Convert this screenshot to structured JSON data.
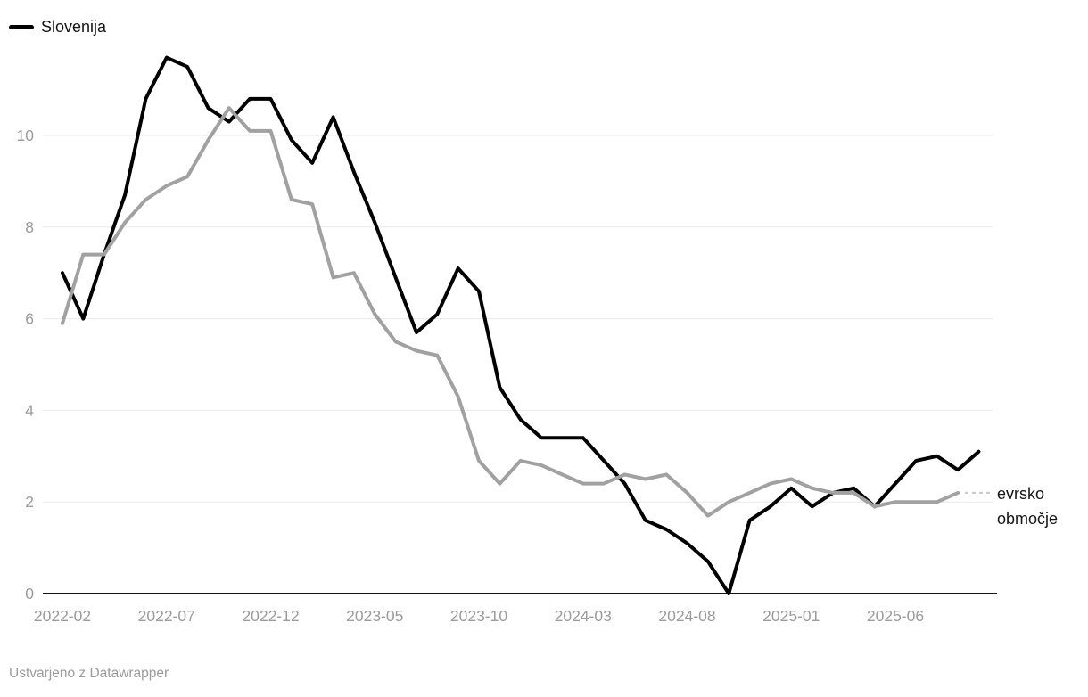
{
  "legend": {
    "items": [
      {
        "label": "Slovenija",
        "color": "#000000"
      }
    ]
  },
  "series_label": {
    "full": "evrsko območje",
    "line1": "evrsko",
    "line2": "območje"
  },
  "footer": {
    "text": "Ustvarjeno z Datawrapper"
  },
  "colors": {
    "slovenija_line": "#000000",
    "euro_line": "#a1a1a1",
    "dotted_connector": "#c8c8c8",
    "gridline": "#e9e9e9",
    "axis": "#141414",
    "tick_label": "#9b9b9b",
    "annotation_text": "#141414",
    "background": "#ffffff"
  },
  "chart_data": {
    "type": "line",
    "title": "",
    "xlabel": "",
    "ylabel": "",
    "grid": "horizontal",
    "legend_position": "top-left",
    "y_ticks": [
      0,
      2,
      4,
      6,
      8,
      10
    ],
    "ylim": [
      0,
      11.7
    ],
    "x_tick_labels": [
      "2022-02",
      "2022-07",
      "2022-12",
      "2023-05",
      "2023-10",
      "2024-03",
      "2024-08",
      "2025-01",
      "2025-06"
    ],
    "x": [
      "2022-02",
      "2022-03",
      "2022-04",
      "2022-05",
      "2022-06",
      "2022-07",
      "2022-08",
      "2022-09",
      "2022-10",
      "2022-11",
      "2022-12",
      "2023-01",
      "2023-02",
      "2023-03",
      "2023-04",
      "2023-05",
      "2023-06",
      "2023-07",
      "2023-08",
      "2023-09",
      "2023-10",
      "2023-11",
      "2023-12",
      "2024-01",
      "2024-02",
      "2024-03",
      "2024-04",
      "2024-05",
      "2024-06",
      "2024-07",
      "2024-08",
      "2024-09",
      "2024-10",
      "2024-11",
      "2024-12",
      "2025-01",
      "2025-02",
      "2025-03",
      "2025-04",
      "2025-05",
      "2025-06",
      "2025-07",
      "2025-08",
      "2025-09",
      "2025-10"
    ],
    "series": [
      {
        "name": "Slovenija",
        "color": "#000000",
        "width": 4,
        "dotted_extension": false,
        "values": [
          7.0,
          6.0,
          7.4,
          8.7,
          10.8,
          11.7,
          11.5,
          10.6,
          10.3,
          10.8,
          10.8,
          9.9,
          9.4,
          10.4,
          9.2,
          8.1,
          6.9,
          5.7,
          6.1,
          7.1,
          6.6,
          4.5,
          3.8,
          3.4,
          3.4,
          3.4,
          2.9,
          2.4,
          1.6,
          1.4,
          1.1,
          0.7,
          0.0,
          1.6,
          1.9,
          2.3,
          1.9,
          2.2,
          2.3,
          1.9,
          2.4,
          2.9,
          3.0,
          2.7,
          3.1
        ]
      },
      {
        "name": "evrsko območje",
        "color": "#a1a1a1",
        "width": 4,
        "dotted_extension": true,
        "values": [
          5.9,
          7.4,
          7.4,
          8.1,
          8.6,
          8.9,
          9.1,
          9.9,
          10.6,
          10.1,
          10.1,
          8.6,
          8.5,
          6.9,
          7.0,
          6.1,
          5.5,
          5.3,
          5.2,
          4.3,
          2.9,
          2.4,
          2.9,
          2.8,
          2.6,
          2.4,
          2.4,
          2.6,
          2.5,
          2.6,
          2.2,
          1.7,
          2.0,
          2.2,
          2.4,
          2.5,
          2.3,
          2.2,
          2.2,
          1.9,
          2.0,
          2.0,
          2.0,
          2.2
        ]
      }
    ]
  }
}
